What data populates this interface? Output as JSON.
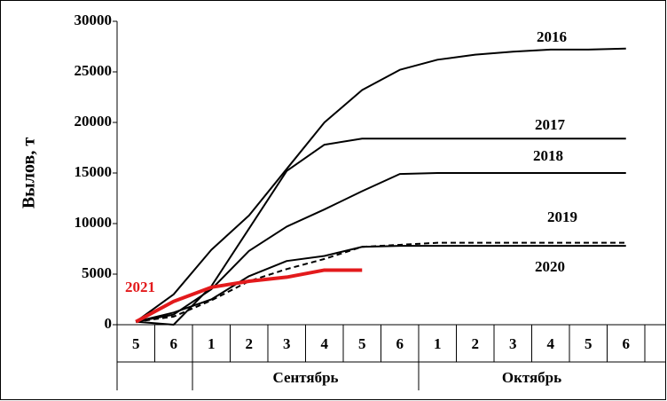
{
  "chart_data": {
    "type": "line",
    "y_label": "Вылов, т",
    "categories": [
      "5",
      "6",
      "1",
      "2",
      "3",
      "4",
      "5",
      "6",
      "1",
      "2",
      "3",
      "4",
      "5",
      "6"
    ],
    "x_groups": [
      {
        "label": "Сентябрь",
        "from": 2,
        "to": 7
      },
      {
        "label": "Октябрь",
        "from": 8,
        "to": 13
      }
    ],
    "ylim": [
      0,
      30000
    ],
    "yticks": [
      0,
      5000,
      10000,
      15000,
      20000,
      25000,
      30000
    ],
    "grid": false,
    "series": [
      {
        "name": "2016",
        "color": "#000000",
        "dash": false,
        "values": [
          300,
          3000,
          7400,
          10800,
          15400,
          20000,
          23200,
          25200,
          26200,
          26700,
          27000,
          27200,
          27200,
          27300
        ]
      },
      {
        "name": "2017",
        "color": "#000000",
        "dash": false,
        "values": [
          300,
          0,
          3800,
          9500,
          15200,
          17800,
          18400,
          18400,
          18400,
          18400,
          18400,
          18400,
          18400,
          18400
        ]
      },
      {
        "name": "2018",
        "color": "#000000",
        "dash": false,
        "values": [
          300,
          1000,
          3500,
          7300,
          9700,
          11400,
          13200,
          14900,
          15000,
          15000,
          15000,
          15000,
          15000,
          15000
        ]
      },
      {
        "name": "2019",
        "color": "#000000",
        "dash": true,
        "values": [
          300,
          800,
          2400,
          4300,
          5500,
          6500,
          7700,
          7900,
          8100,
          8100,
          8100,
          8100,
          8100,
          8100
        ]
      },
      {
        "name": "2020",
        "color": "#000000",
        "dash": false,
        "values": [
          300,
          1200,
          2500,
          4800,
          6300,
          6800,
          7700,
          7800,
          7800,
          7800,
          7800,
          7800,
          7800,
          7800
        ]
      },
      {
        "name": "2021",
        "color": "#e31a1c",
        "dash": false,
        "values": [
          300,
          2300,
          3700,
          4300,
          4700,
          5400,
          5400,
          null,
          null,
          null,
          null,
          null,
          null,
          null
        ]
      }
    ]
  }
}
